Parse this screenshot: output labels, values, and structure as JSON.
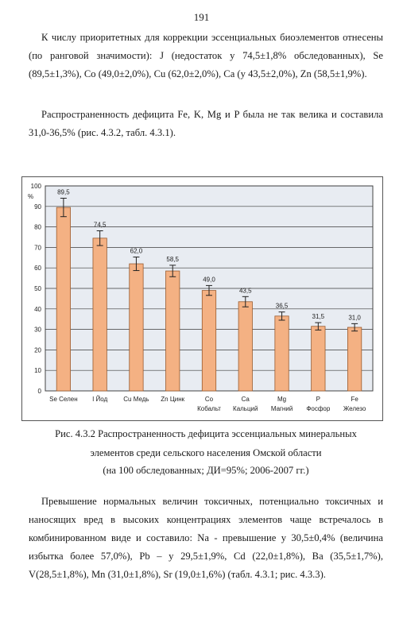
{
  "page_number": "191",
  "paragraph1": "К числу приоритетных для коррекции эссенциальных биоэлементов отнесены (по ранговой значимости): J (недостаток у 74,5±1,8% обследованных), Se (89,5±1,3%), Co (49,0±2,0%), Cu (62,0±2,0%), Ca (у 43,5±2,0%), Zn (58,5±1,9%).",
  "paragraph2": "Распространенность дефицита Fe, K, Mg и P была не так велика и составила 31,0-36,5% (рис. 4.3.2, табл. 4.3.1).",
  "caption": {
    "line1": "Рис. 4.3.2 Распространенность дефицита эссенциальных минеральных",
    "line2": "элементов среди сельского населения Омской области",
    "line3": "(на 100 обследованных; ДИ=95%; 2006-2007 гг.)"
  },
  "paragraph3": "Превышение нормальных величин токсичных, потенциально токсичных и наносящих вред в высоких концентрациях элементов чаще встречалось в комбинированном виде и составило: Na - превышение у 30,5±0,4% (величина избытка более 57,0%), Pb – у 29,5±1,9%, Cd (22,0±1,8%), Ba (35,5±1,7%), V(28,5±1,8%), Mn (31,0±1,8%), Sr (19,0±1,6%) (табл. 4.3.1; рис. 4.3.3).",
  "chart_data": {
    "type": "bar",
    "ylabel": "%",
    "ylim": [
      0,
      100
    ],
    "yticks": [
      0,
      10,
      20,
      30,
      40,
      50,
      60,
      70,
      80,
      90,
      100
    ],
    "categories": [
      [
        "Se Селен"
      ],
      [
        "I Йод"
      ],
      [
        "Cu Медь"
      ],
      [
        "Zn Цинк"
      ],
      [
        "Co",
        "Кобальт"
      ],
      [
        "Ca",
        "Кальций"
      ],
      [
        "Mg",
        "Магний"
      ],
      [
        "P",
        "Фосфор"
      ],
      [
        "Fe",
        "Железо"
      ]
    ],
    "values": [
      89.5,
      74.5,
      62.0,
      58.5,
      49.0,
      43.5,
      36.5,
      31.5,
      31.0
    ],
    "value_labels": [
      "89,5",
      "74,5",
      "62,0",
      "58,5",
      "49,0",
      "43,5",
      "36,5",
      "31,5",
      "31,0"
    ],
    "errors": [
      4.5,
      3.6,
      3.3,
      2.8,
      2.4,
      2.5,
      2.0,
      1.8,
      1.8
    ],
    "grid": true,
    "colors": {
      "plot_background": "#e8ecf2",
      "bar_fill": "#f4b183",
      "bar_stroke": "#9a5b2e",
      "grid": "#3a3a3a",
      "error_bar": "#222222"
    }
  }
}
